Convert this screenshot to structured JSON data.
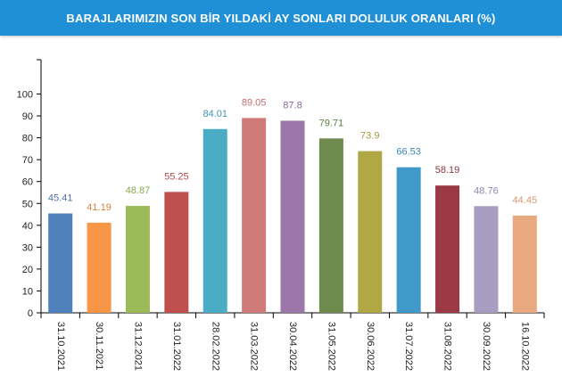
{
  "header": {
    "title": "BARAJLARIMIZIN SON BİR YILDAKİ AY SONLARI DOLULUK ORANLARI (%)"
  },
  "colors": {
    "header_bg": "#1f8fd6",
    "header_text": "#ffffff"
  },
  "chart_data": {
    "type": "bar",
    "title": "BARAJLARIMIZIN SON BİR YILDAKİ AY SONLARI DOLULUK ORANLARI (%)",
    "categories": [
      "31.10.2021",
      "30.11.2021",
      "31.12.2021",
      "31.01.2022",
      "28.02.2022",
      "31.03.2022",
      "30.04.2022",
      "31.05.2022",
      "30.06.2022",
      "31.07.2022",
      "31.08.2022",
      "30.09.2022",
      "16.10.2022"
    ],
    "values": [
      45.41,
      41.19,
      48.87,
      55.25,
      84.01,
      89.05,
      87.8,
      79.71,
      73.9,
      66.53,
      58.19,
      48.76,
      44.45
    ],
    "value_labels": [
      "45.41",
      "41.19",
      "48.87",
      "55.25",
      "84.01",
      "89.05",
      "87.8",
      "79.71",
      "73.9",
      "66.53",
      "58.19",
      "48.76",
      "44.45"
    ],
    "bar_colors": [
      "#4f81bd",
      "#f79646",
      "#9bbb59",
      "#c0504d",
      "#4bacc6",
      "#d07a7a",
      "#9c76a8",
      "#6e8b4d",
      "#b0a745",
      "#4099c8",
      "#9b3a44",
      "#a89cc2",
      "#e8a880"
    ],
    "label_colors": [
      "#4f6fa0",
      "#d9823a",
      "#8aa64c",
      "#b04a47",
      "#3f96ad",
      "#c66e6e",
      "#8a679a",
      "#5f7d40",
      "#a39b3c",
      "#3a88b4",
      "#8c3840",
      "#9587b3",
      "#dc9570"
    ],
    "yticks": [
      "0",
      "10",
      "20",
      "30",
      "40",
      "50",
      "60",
      "70",
      "80",
      "90",
      "100"
    ],
    "ylim": [
      0,
      110
    ],
    "xlabel": "",
    "ylabel": "",
    "grid": false,
    "legend": "none"
  }
}
